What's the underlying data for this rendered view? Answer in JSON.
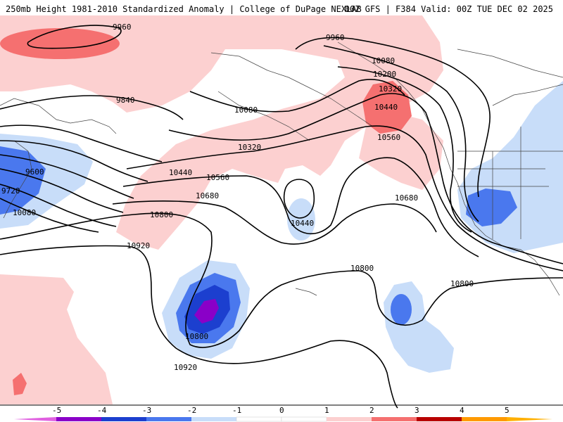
{
  "header": {
    "left": "250mb Height 1981-2010 Standardized Anomaly | College of DuPage NEXLAB",
    "right": "00Z GFS | F384 Valid: 00Z TUE DEC 02 2025"
  },
  "colors": {
    "neg5": "#e060e0",
    "neg4": "#8a00c8",
    "neg3": "#1c3fcf",
    "neg2": "#4a78ee",
    "neg1": "#c8ddf9",
    "zero": "#ffffff",
    "pos1": "#fcd0d0",
    "pos2": "#f57070",
    "pos3": "#e04040",
    "pos4": "#b80000",
    "pos5": "#ff9a00",
    "pos6": "#ffb000"
  },
  "contour_labels": [
    "9960",
    "9960",
    "9840",
    "9600",
    "9720",
    "10080",
    "10080",
    "10080",
    "10200",
    "10320",
    "10320",
    "10440",
    "10440",
    "10440",
    "10560",
    "10560",
    "10680",
    "10680",
    "10800",
    "10800",
    "10800",
    "10800",
    "10920",
    "10920"
  ],
  "colorbar": {
    "ticks": [
      "-5",
      "-4",
      "-3",
      "-2",
      "-1",
      "0",
      "1",
      "2",
      "3",
      "4",
      "5"
    ]
  }
}
